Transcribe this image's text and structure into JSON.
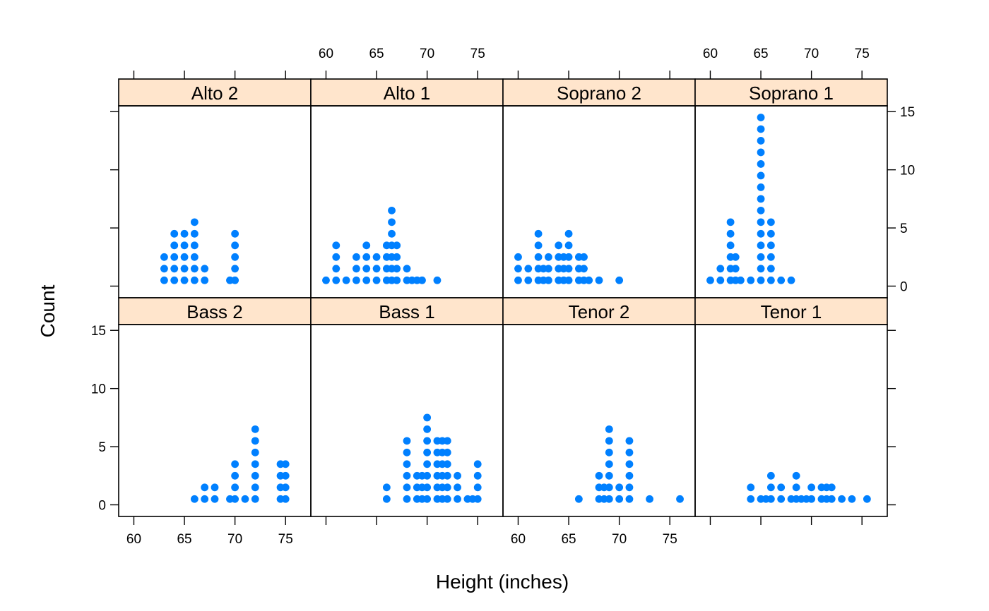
{
  "chart_data": {
    "type": "scatter",
    "style": "stacked dot plot (histogram of points)",
    "xlabel": "Height (inches)",
    "ylabel": "Count",
    "xlim": [
      58.5,
      77.5
    ],
    "ylim": [
      -1,
      15.5
    ],
    "xticks": [
      60,
      65,
      70,
      75
    ],
    "yticks": [
      0,
      5,
      10,
      15
    ],
    "colors": {
      "point": "#0080ff",
      "strip": "#ffe5cc",
      "frame": "#000000"
    },
    "panels": [
      {
        "name": "Bass 2",
        "row": 0,
        "col": 0,
        "points": [
          [
            66,
            1
          ],
          [
            67,
            2
          ],
          [
            68,
            2
          ],
          [
            69.5,
            1
          ],
          [
            70,
            4
          ],
          [
            71,
            1
          ],
          [
            72,
            7
          ],
          [
            74.5,
            4
          ],
          [
            75,
            4
          ]
        ]
      },
      {
        "name": "Bass 1",
        "row": 0,
        "col": 1,
        "points": [
          [
            66,
            2
          ],
          [
            68,
            6
          ],
          [
            69,
            3
          ],
          [
            69.5,
            3
          ],
          [
            70,
            8
          ],
          [
            71,
            6
          ],
          [
            71.5,
            6
          ],
          [
            72,
            6
          ],
          [
            73,
            3
          ],
          [
            74,
            1
          ],
          [
            74.5,
            1
          ],
          [
            75,
            4
          ]
        ]
      },
      {
        "name": "Tenor 2",
        "row": 0,
        "col": 2,
        "points": [
          [
            66,
            1
          ],
          [
            68,
            3
          ],
          [
            68.5,
            2
          ],
          [
            69,
            7
          ],
          [
            70,
            2
          ],
          [
            71,
            6
          ],
          [
            73,
            1
          ],
          [
            76,
            1
          ]
        ]
      },
      {
        "name": "Tenor 1",
        "row": 0,
        "col": 3,
        "points": [
          [
            64,
            2
          ],
          [
            65,
            1
          ],
          [
            65.5,
            1
          ],
          [
            66,
            3
          ],
          [
            67,
            2
          ],
          [
            68,
            1
          ],
          [
            68.5,
            3
          ],
          [
            69,
            1
          ],
          [
            69.5,
            1
          ],
          [
            70,
            2
          ],
          [
            71,
            2
          ],
          [
            71.5,
            2
          ],
          [
            72,
            2
          ],
          [
            73,
            1
          ],
          [
            74,
            1
          ],
          [
            75.5,
            1
          ]
        ]
      },
      {
        "name": "Alto 2",
        "row": 1,
        "col": 0,
        "points": [
          [
            63,
            3
          ],
          [
            64,
            5
          ],
          [
            65,
            5
          ],
          [
            66,
            6
          ],
          [
            67,
            2
          ],
          [
            69.5,
            1
          ],
          [
            70,
            5
          ]
        ]
      },
      {
        "name": "Alto 1",
        "row": 1,
        "col": 1,
        "points": [
          [
            60,
            1
          ],
          [
            61,
            4
          ],
          [
            62,
            1
          ],
          [
            63,
            3
          ],
          [
            64,
            4
          ],
          [
            65,
            3
          ],
          [
            66,
            4
          ],
          [
            66.5,
            7
          ],
          [
            67,
            4
          ],
          [
            68,
            2
          ],
          [
            68.5,
            1
          ],
          [
            69,
            1
          ],
          [
            69.5,
            1
          ],
          [
            71,
            1
          ]
        ]
      },
      {
        "name": "Soprano 2",
        "row": 1,
        "col": 2,
        "points": [
          [
            60,
            3
          ],
          [
            61,
            2
          ],
          [
            62,
            5
          ],
          [
            62.5,
            2
          ],
          [
            63,
            3
          ],
          [
            64,
            4
          ],
          [
            64.5,
            3
          ],
          [
            65,
            5
          ],
          [
            66,
            3
          ],
          [
            66.5,
            3
          ],
          [
            67,
            1
          ],
          [
            68,
            1
          ],
          [
            70,
            1
          ]
        ]
      },
      {
        "name": "Soprano 1",
        "row": 1,
        "col": 3,
        "points": [
          [
            60,
            1
          ],
          [
            61,
            2
          ],
          [
            62,
            6
          ],
          [
            62.5,
            3
          ],
          [
            63,
            1
          ],
          [
            64,
            1
          ],
          [
            65,
            15
          ],
          [
            66,
            6
          ],
          [
            67,
            1
          ],
          [
            68,
            1
          ]
        ]
      }
    ]
  }
}
